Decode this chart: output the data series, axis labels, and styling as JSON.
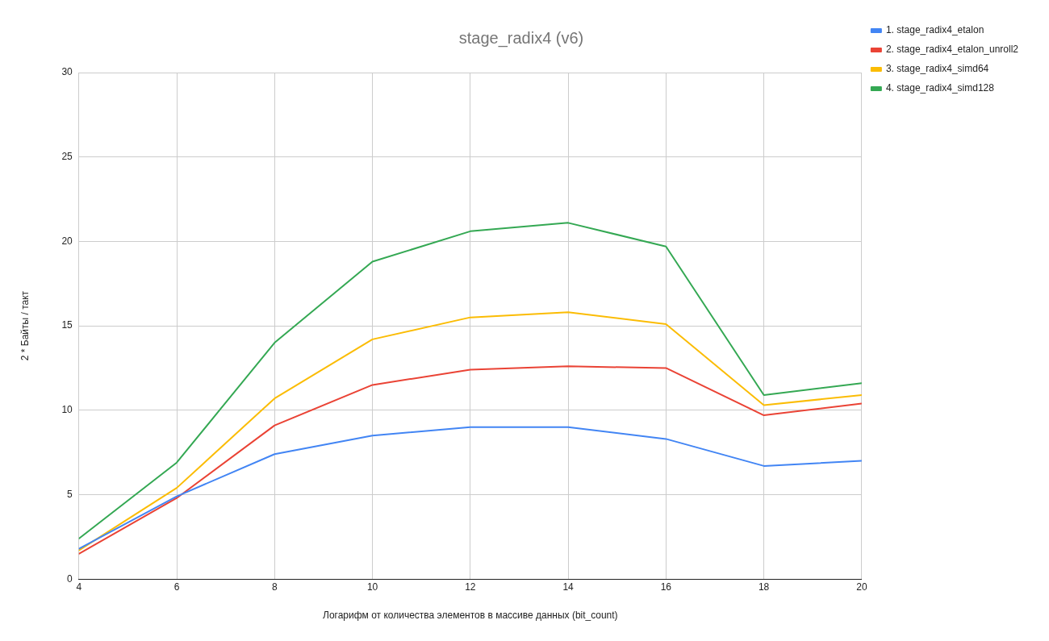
{
  "chart_data": {
    "type": "line",
    "title": "stage_radix4 (v6)",
    "xlabel": "Логарифм от количества элементов в массиве данных (bit_count)",
    "ylabel": "2 * Байты / такт",
    "x": [
      4,
      6,
      8,
      10,
      12,
      14,
      16,
      18,
      20
    ],
    "series": [
      {
        "name": "1. stage_radix4_etalon",
        "color": "#4285f4",
        "values": [
          1.8,
          4.9,
          7.4,
          8.5,
          9.0,
          9.0,
          8.3,
          6.7,
          7.0
        ]
      },
      {
        "name": "2. stage_radix4_etalon_unroll2",
        "color": "#ea4335",
        "values": [
          1.5,
          4.8,
          9.1,
          11.5,
          12.4,
          12.6,
          12.5,
          9.7,
          10.4
        ]
      },
      {
        "name": "3. stage_radix4_simd64",
        "color": "#fbbc04",
        "values": [
          1.7,
          5.4,
          10.7,
          14.2,
          15.5,
          15.8,
          15.1,
          10.3,
          10.9
        ]
      },
      {
        "name": "4. stage_radix4_simd128",
        "color": "#34a853",
        "values": [
          2.4,
          6.9,
          14.0,
          18.8,
          20.6,
          21.1,
          19.7,
          10.9,
          11.6
        ]
      }
    ],
    "xlim": [
      4,
      20
    ],
    "xticks": [
      4,
      6,
      8,
      10,
      12,
      14,
      16,
      18,
      20
    ],
    "ylim": [
      0,
      30
    ],
    "yticks": [
      0,
      5,
      10,
      15,
      20,
      25,
      30
    ],
    "grid": true,
    "legend": "top right",
    "marker": "none",
    "line_style": "solid"
  }
}
